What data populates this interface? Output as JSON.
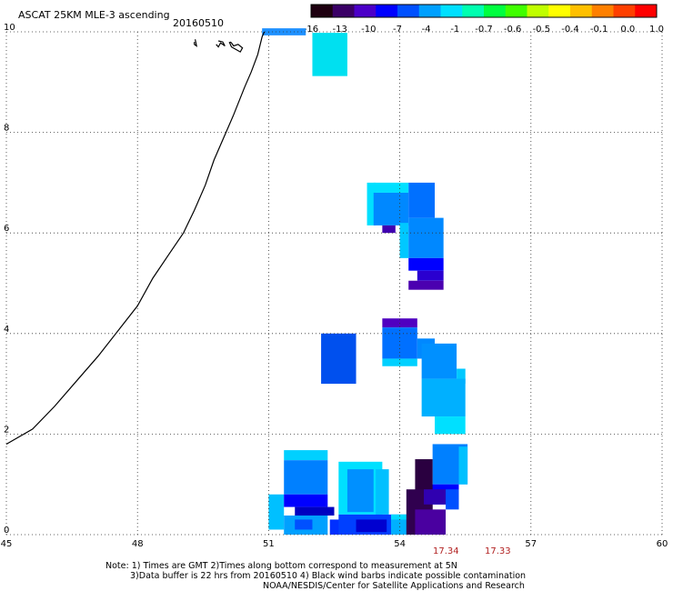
{
  "header": {
    "title": "ASCAT 25KM MLE-3 ascending",
    "date": "20160510"
  },
  "colorbar": {
    "labels": [
      "-16",
      "-13",
      "-10",
      "-7",
      "-4",
      "-1",
      "-0.7",
      "-0.6",
      "-0.5",
      "-0.4",
      "-0.1",
      "0.0",
      "1.0"
    ],
    "colors": [
      "#1e0010",
      "#3a0066",
      "#4b00c8",
      "#0000ff",
      "#0050ff",
      "#00a0ff",
      "#00e0ff",
      "#00ffb0",
      "#00ff40",
      "#40ff00",
      "#c0ff00",
      "#ffff00",
      "#ffc000",
      "#ff8000",
      "#ff4000",
      "#ff0000"
    ]
  },
  "axes": {
    "x_ticks": [
      "45",
      "48",
      "51",
      "54",
      "57",
      "60"
    ],
    "y_ticks": [
      "0",
      "2",
      "4",
      "6",
      "8",
      "10"
    ],
    "x_range": [
      45,
      60
    ],
    "y_range": [
      0,
      10
    ]
  },
  "times": [
    "17.34",
    "17.33"
  ],
  "notes": [
    "Note: 1) Times are GMT 2)Times along bottom correspond to measurement at 5N",
    "3)Data buffer is 22 hrs from 20160510 4) Black wind barbs indicate possible contamination",
    "NOAA/NESDIS/Center for Satellite Applications and Research"
  ],
  "swath_cells": [
    {
      "lon": 50.85,
      "lat": 9.93,
      "w": 1.0,
      "h": 0.14,
      "color": "#1e90ff"
    },
    {
      "lon": 52.0,
      "lat": 9.12,
      "w": 0.8,
      "h": 0.86,
      "color": "#00e0f0"
    },
    {
      "lon": 53.25,
      "lat": 6.15,
      "w": 0.2,
      "h": 0.85,
      "color": "#00e0ff"
    },
    {
      "lon": 53.4,
      "lat": 6.8,
      "w": 0.8,
      "h": 0.2,
      "color": "#00e0ff"
    },
    {
      "lon": 53.4,
      "lat": 6.15,
      "w": 0.8,
      "h": 0.65,
      "color": "#0088ff"
    },
    {
      "lon": 53.6,
      "lat": 6.0,
      "w": 0.3,
      "h": 0.15,
      "color": "#4000b0"
    },
    {
      "lon": 54.2,
      "lat": 6.3,
      "w": 0.6,
      "h": 0.7,
      "color": "#0070ff"
    },
    {
      "lon": 54.0,
      "lat": 5.5,
      "w": 0.2,
      "h": 0.7,
      "color": "#00c8ff"
    },
    {
      "lon": 54.2,
      "lat": 5.5,
      "w": 0.8,
      "h": 0.8,
      "color": "#0088ff"
    },
    {
      "lon": 54.2,
      "lat": 5.25,
      "w": 0.8,
      "h": 0.25,
      "color": "#0000ff"
    },
    {
      "lon": 54.4,
      "lat": 5.05,
      "w": 0.6,
      "h": 0.2,
      "color": "#2a00d0"
    },
    {
      "lon": 54.2,
      "lat": 4.87,
      "w": 0.8,
      "h": 0.18,
      "color": "#4b00b0"
    },
    {
      "lon": 52.2,
      "lat": 3.0,
      "w": 0.8,
      "h": 1.0,
      "color": "#0050ee"
    },
    {
      "lon": 53.6,
      "lat": 4.12,
      "w": 0.8,
      "h": 0.18,
      "color": "#5000c0"
    },
    {
      "lon": 53.6,
      "lat": 3.5,
      "w": 0.8,
      "h": 0.62,
      "color": "#0070ff"
    },
    {
      "lon": 53.6,
      "lat": 3.35,
      "w": 0.8,
      "h": 0.15,
      "color": "#00d0ff"
    },
    {
      "lon": 54.4,
      "lat": 3.5,
      "w": 0.4,
      "h": 0.4,
      "color": "#0088ff"
    },
    {
      "lon": 54.5,
      "lat": 3.1,
      "w": 0.8,
      "h": 0.7,
      "color": "#0090ff"
    },
    {
      "lon": 55.3,
      "lat": 3.0,
      "w": 0.2,
      "h": 0.3,
      "color": "#00c8ff"
    },
    {
      "lon": 54.5,
      "lat": 2.35,
      "w": 1.0,
      "h": 0.75,
      "color": "#00b0ff"
    },
    {
      "lon": 54.8,
      "lat": 2.0,
      "w": 0.7,
      "h": 0.35,
      "color": "#00e0ff"
    },
    {
      "lon": 51.35,
      "lat": 1.48,
      "w": 1.0,
      "h": 0.2,
      "color": "#00d0ff"
    },
    {
      "lon": 51.35,
      "lat": 0.8,
      "w": 1.0,
      "h": 0.68,
      "color": "#0080ff"
    },
    {
      "lon": 51.0,
      "lat": 0.1,
      "w": 0.35,
      "h": 0.7,
      "color": "#00c0ff"
    },
    {
      "lon": 51.35,
      "lat": 0.55,
      "w": 1.0,
      "h": 0.25,
      "color": "#0000ff"
    },
    {
      "lon": 51.6,
      "lat": 0.38,
      "w": 0.9,
      "h": 0.17,
      "color": "#0000c0"
    },
    {
      "lon": 51.35,
      "lat": 0.0,
      "w": 1.0,
      "h": 0.38,
      "color": "#00a0ff"
    },
    {
      "lon": 51.6,
      "lat": 0.1,
      "w": 0.4,
      "h": 0.2,
      "color": "#0050ff"
    },
    {
      "lon": 52.4,
      "lat": 0.0,
      "w": 0.6,
      "h": 0.3,
      "color": "#0030ff"
    },
    {
      "lon": 52.6,
      "lat": 0.4,
      "w": 1.0,
      "h": 1.05,
      "color": "#00e0ff"
    },
    {
      "lon": 52.8,
      "lat": 0.45,
      "w": 0.6,
      "h": 0.85,
      "color": "#0090ff"
    },
    {
      "lon": 53.45,
      "lat": 0.4,
      "w": 0.3,
      "h": 0.9,
      "color": "#00c0ff"
    },
    {
      "lon": 52.6,
      "lat": 0.0,
      "w": 1.8,
      "h": 0.4,
      "color": "#0040ff"
    },
    {
      "lon": 53.0,
      "lat": 0.05,
      "w": 0.7,
      "h": 0.25,
      "color": "#0000d0"
    },
    {
      "lon": 53.8,
      "lat": 0.0,
      "w": 0.6,
      "h": 0.4,
      "color": "#00b0ff"
    },
    {
      "lon": 53.8,
      "lat": 0.3,
      "w": 0.6,
      "h": 0.1,
      "color": "#00d8ff"
    },
    {
      "lon": 54.75,
      "lat": 1.0,
      "w": 0.8,
      "h": 0.8,
      "color": "#0080ff"
    },
    {
      "lon": 55.35,
      "lat": 1.0,
      "w": 0.2,
      "h": 0.75,
      "color": "#00c0ff"
    },
    {
      "lon": 54.55,
      "lat": 0.6,
      "w": 0.8,
      "h": 0.4,
      "color": "#0000ff"
    },
    {
      "lon": 54.35,
      "lat": 0.5,
      "w": 0.4,
      "h": 1.0,
      "color": "#2a0040"
    },
    {
      "lon": 54.15,
      "lat": 0.0,
      "w": 0.6,
      "h": 0.9,
      "color": "#30004f"
    },
    {
      "lon": 54.35,
      "lat": 0.0,
      "w": 0.7,
      "h": 0.5,
      "color": "#4a00a0"
    },
    {
      "lon": 54.55,
      "lat": 0.6,
      "w": 0.5,
      "h": 0.3,
      "color": "#3000b0"
    },
    {
      "lon": 55.05,
      "lat": 0.5,
      "w": 0.3,
      "h": 0.4,
      "color": "#0050ff"
    }
  ],
  "coast_points": [
    [
      45.0,
      1.8
    ],
    [
      45.6,
      2.1
    ],
    [
      46.1,
      2.55
    ],
    [
      46.6,
      3.05
    ],
    [
      47.1,
      3.55
    ],
    [
      47.55,
      4.05
    ],
    [
      48.0,
      4.55
    ],
    [
      48.35,
      5.1
    ],
    [
      48.7,
      5.55
    ],
    [
      49.05,
      6.0
    ],
    [
      49.3,
      6.45
    ],
    [
      49.55,
      6.95
    ],
    [
      49.75,
      7.45
    ],
    [
      49.95,
      7.85
    ],
    [
      50.2,
      8.35
    ],
    [
      50.45,
      8.9
    ],
    [
      50.6,
      9.2
    ],
    [
      50.75,
      9.55
    ],
    [
      50.85,
      9.9
    ],
    [
      50.9,
      10.0
    ]
  ],
  "islands": [
    [
      [
        49.3,
        9.8
      ],
      [
        49.3,
        9.75
      ],
      [
        49.35,
        9.72
      ],
      [
        49.32,
        9.85
      ]
    ],
    [
      [
        50.1,
        9.8
      ],
      [
        50.15,
        9.7
      ],
      [
        50.25,
        9.65
      ],
      [
        50.35,
        9.6
      ],
      [
        50.4,
        9.68
      ],
      [
        50.3,
        9.75
      ],
      [
        50.2,
        9.72
      ],
      [
        50.15,
        9.78
      ],
      [
        50.12,
        9.8
      ]
    ],
    [
      [
        49.8,
        9.75
      ],
      [
        49.85,
        9.7
      ],
      [
        49.9,
        9.78
      ],
      [
        49.95,
        9.75
      ],
      [
        50.0,
        9.72
      ],
      [
        49.95,
        9.8
      ],
      [
        49.85,
        9.82
      ]
    ]
  ]
}
